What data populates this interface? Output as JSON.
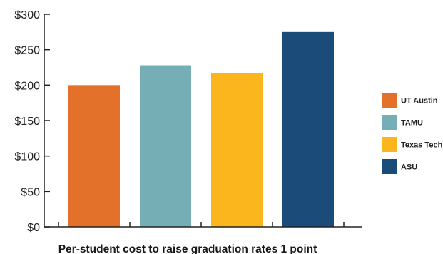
{
  "chart_data": {
    "type": "bar",
    "title": "",
    "xlabel": "Per-student cost to raise graduation rates 1 point",
    "ylabel": "",
    "ylim": [
      0,
      300
    ],
    "yticks": [
      0,
      50,
      100,
      150,
      200,
      250,
      300
    ],
    "ytick_labels": [
      "$0",
      "$50",
      "$100",
      "$150",
      "$200",
      "$250",
      "$300"
    ],
    "legend_position": "right",
    "grid": false,
    "categories": [
      "UT Austin",
      "TAMU",
      "Texas Tech",
      "ASU"
    ],
    "values": [
      200,
      228,
      217,
      275
    ],
    "colors": [
      "#e4712a",
      "#76aeb5",
      "#fbb61d",
      "#1b4b79"
    ]
  }
}
